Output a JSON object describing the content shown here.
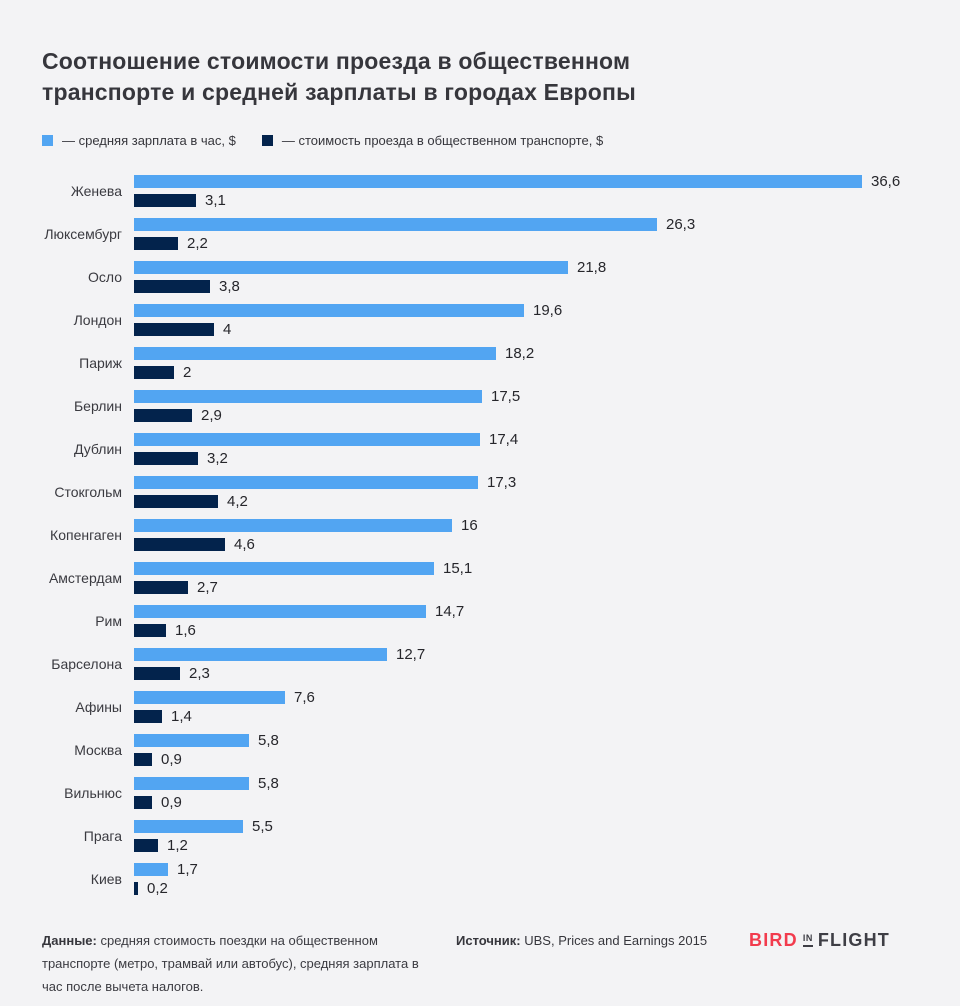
{
  "title": "Соотношение стоимости проезда в общественном транспорте и средней зарплаты в городах Европы",
  "colors": {
    "background": "#f3f3f5",
    "salary_bar": "#52a5f2",
    "fare_bar": "#03234c",
    "text": "#36363c",
    "logo_red": "#f23b4d",
    "logo_dark": "#3e3e45"
  },
  "legend": [
    {
      "label": "— средняя зарплата в час, $",
      "color": "#52a5f2"
    },
    {
      "label": "— стоимость проезда в общественном транспорте, $",
      "color": "#03234c"
    }
  ],
  "chart_data": {
    "type": "bar",
    "orientation": "horizontal",
    "grid": false,
    "legend_position": "top",
    "xlim": [
      0,
      37
    ],
    "categories": [
      "Женева",
      "Люксембург",
      "Осло",
      "Лондон",
      "Париж",
      "Берлин",
      "Дублин",
      "Стокгольм",
      "Копенгаген",
      "Амстердам",
      "Рим",
      "Барселона",
      "Афины",
      "Москва",
      "Вильнюс",
      "Прага",
      "Киев"
    ],
    "series": [
      {
        "name": "средняя зарплата в час, $",
        "color": "#52a5f2",
        "values": [
          36.6,
          26.3,
          21.8,
          19.6,
          18.2,
          17.5,
          17.4,
          17.3,
          16,
          15.1,
          14.7,
          12.7,
          7.6,
          5.8,
          5.8,
          5.5,
          1.7
        ]
      },
      {
        "name": "стоимость проезда в общественном транспорте, $",
        "color": "#03234c",
        "values": [
          3.1,
          2.2,
          3.8,
          4,
          2,
          2.9,
          3.2,
          4.2,
          4.6,
          2.7,
          1.6,
          2.3,
          1.4,
          0.9,
          0.9,
          1.2,
          0.2
        ]
      }
    ],
    "value_label_decimal_separator": ","
  },
  "footer": {
    "data_note_label": "Данные:",
    "data_note": " средняя стоимость поездки на общественном транспорте (метро, трамвай или автобус), средняя зарплата в час после вычета налогов.",
    "source_label": "Источник:",
    "source": " UBS, Prices and Earnings 2015",
    "logo": {
      "part1": "BIRD",
      "part2": "IN",
      "part3": "FLIGHT"
    }
  }
}
